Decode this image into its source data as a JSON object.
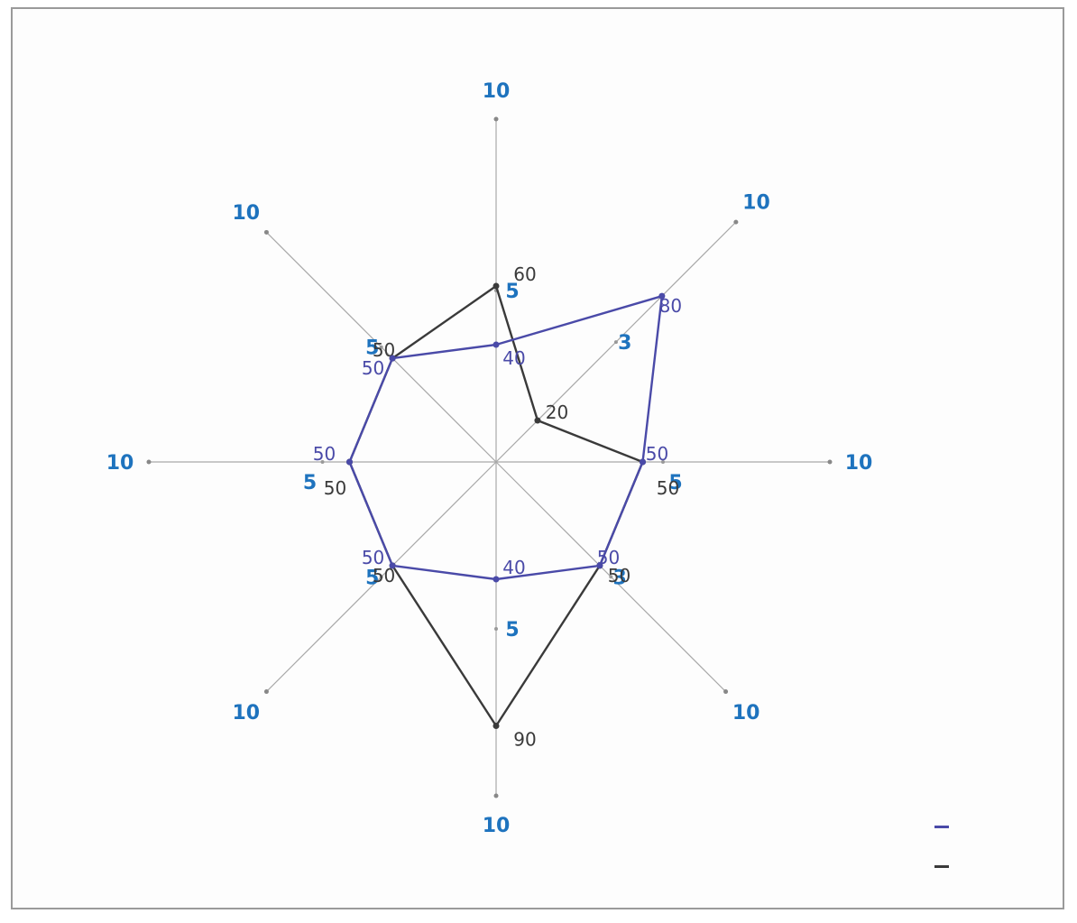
{
  "chart_data": {
    "type": "radar",
    "title": "",
    "axes": [
      {
        "name": "",
        "max_label": "10",
        "mid_label": "5"
      },
      {
        "name": "",
        "max_label": "10",
        "mid_label": "3"
      },
      {
        "name": "",
        "max_label": "10",
        "mid_label": "5"
      },
      {
        "name": "",
        "max_label": "10",
        "mid_label": "3"
      },
      {
        "name": "",
        "max_label": "10",
        "mid_label": "5"
      },
      {
        "name": "",
        "max_label": "10",
        "mid_label": "5"
      },
      {
        "name": "",
        "max_label": "10",
        "mid_label": "5"
      },
      {
        "name": "",
        "max_label": "10",
        "mid_label": "5"
      }
    ],
    "axis_max": 100,
    "series": [
      {
        "name": "",
        "color": "#3a3a3a",
        "values": [
          60,
          20,
          50,
          50,
          90,
          50,
          50,
          50
        ]
      },
      {
        "name": "",
        "color": "#4a4aa8",
        "values": [
          40,
          80,
          50,
          50,
          40,
          50,
          50,
          50
        ]
      }
    ],
    "grid": false,
    "legend": "bottom-right"
  },
  "legend": [
    {
      "label": "",
      "color": "#4a4aa8"
    },
    {
      "label": "",
      "color": "#3a3a3a"
    }
  ]
}
